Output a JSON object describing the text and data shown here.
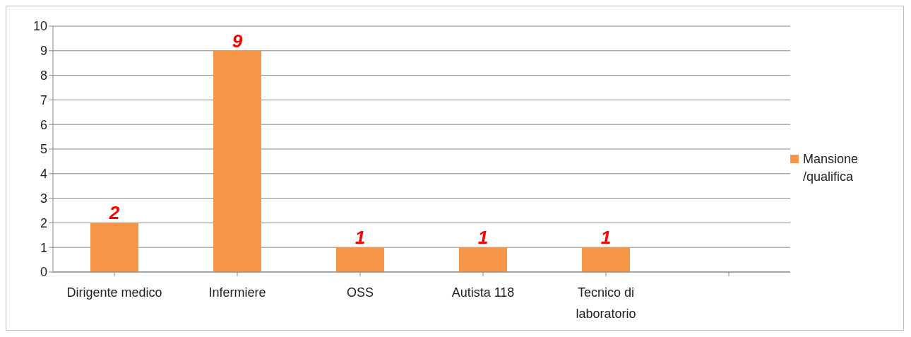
{
  "chart_data": {
    "type": "bar",
    "categories": [
      "Dirigente medico",
      "Infermiere",
      "OSS",
      "Autista 118",
      "Tecnico di laboratorio",
      null
    ],
    "series": [
      {
        "name": "Mansione /qualifica",
        "color": "#f79646",
        "values": [
          2,
          9,
          1,
          1,
          1,
          null
        ]
      }
    ],
    "ylim": [
      0,
      10
    ],
    "yticks": [
      0,
      1,
      2,
      3,
      4,
      5,
      6,
      7,
      8,
      9,
      10
    ],
    "grid": "y",
    "legend": "right",
    "data_labels": true
  }
}
